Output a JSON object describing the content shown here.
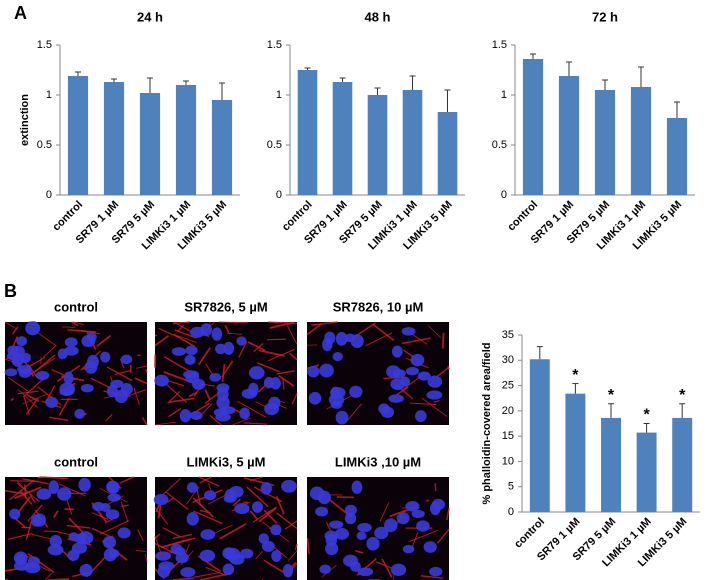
{
  "panel_labels": [
    "A",
    "B"
  ],
  "image_captions": [
    "control",
    "SR7826, 5 µM",
    "SR7826, 10 µM",
    "control",
    "LIMKi3, 5 µM",
    "LIMKi3 ,10 µM"
  ],
  "chart_data": [
    {
      "type": "bar",
      "title": "24 h",
      "y_label": "extinction",
      "categories": [
        "control",
        "SR79 1 µM",
        "SR79 5 µM",
        "LIMKi3 1 µM",
        "LIMKi3 5 µM"
      ],
      "values": [
        1.19,
        1.13,
        1.02,
        1.1,
        0.95
      ],
      "errors": [
        0.04,
        0.03,
        0.15,
        0.04,
        0.17
      ],
      "color": "#4f81bd",
      "ylim": [
        0,
        1.5
      ],
      "yticks": [
        0,
        0.5,
        1,
        1.5
      ]
    },
    {
      "type": "bar",
      "title": "48 h",
      "categories": [
        "control",
        "SR79 1 µM",
        "SR79 5 µM",
        "LIMKi3 1 µM",
        "LIMKi3 5 µM"
      ],
      "values": [
        1.25,
        1.13,
        1.0,
        1.05,
        0.83
      ],
      "errors": [
        0.02,
        0.04,
        0.07,
        0.14,
        0.22
      ],
      "color": "#4f81bd",
      "ylim": [
        0,
        1.5
      ],
      "yticks": [
        0,
        0.5,
        1,
        1.5
      ]
    },
    {
      "type": "bar",
      "title": "72 h",
      "categories": [
        "control",
        "SR79 1 µM",
        "SR79 5 µM",
        "LIMKi3 1 µM",
        "LIMKi3 5 µM"
      ],
      "values": [
        1.36,
        1.19,
        1.05,
        1.08,
        0.77
      ],
      "errors": [
        0.05,
        0.14,
        0.1,
        0.2,
        0.16
      ],
      "color": "#4f81bd",
      "ylim": [
        0,
        1.5
      ],
      "yticks": [
        0,
        0.5,
        1,
        1.5
      ]
    },
    {
      "type": "bar",
      "y_label": "% phalloidin-covered area/field",
      "categories": [
        "control",
        "SR79 1 µM",
        "SR79 5 µM",
        "LIMKi3 1 µM",
        "LIMKi3 5 µM"
      ],
      "values": [
        30.2,
        23.4,
        18.6,
        15.7,
        18.6
      ],
      "errors": [
        2.5,
        2.0,
        2.8,
        1.8,
        2.8
      ],
      "significance": [
        null,
        "*",
        "*",
        "*",
        "*"
      ],
      "color": "#4f81bd",
      "ylim": [
        0,
        35
      ],
      "yticks": [
        0,
        5,
        10,
        15,
        20,
        25,
        30,
        35
      ]
    }
  ]
}
